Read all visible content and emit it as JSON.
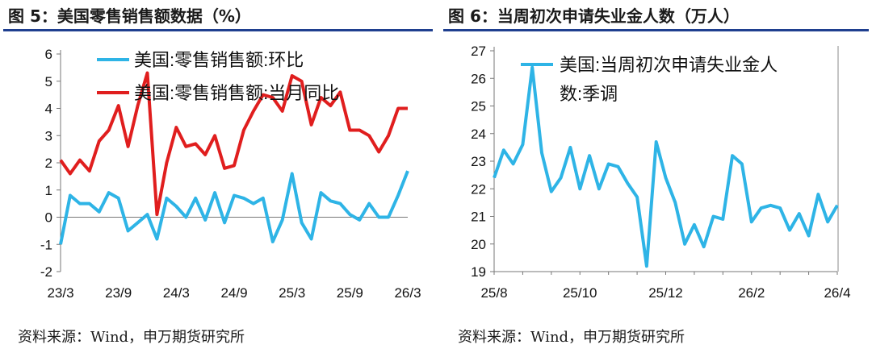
{
  "charts": [
    {
      "title": "图 5：美国零售销售额数据（%）",
      "source": "资料来源：Wind，申万期货研究所",
      "chart_data": {
        "type": "line",
        "ylim": [
          -2,
          6
        ],
        "yticks": [
          -2,
          -1,
          0,
          1,
          2,
          3,
          4,
          5,
          6
        ],
        "xticks": [
          {
            "label": "23/3",
            "index": 0
          },
          {
            "label": "23/9",
            "index": 6
          },
          {
            "label": "24/3",
            "index": 12
          },
          {
            "label": "24/9",
            "index": 18
          },
          {
            "label": "25/3",
            "index": 24
          },
          {
            "label": "25/9",
            "index": 30
          },
          {
            "label": "26/3",
            "index": 36
          }
        ],
        "legend_position": "top",
        "series": [
          {
            "name": "美国:零售销售额:环比",
            "color": "#2eb4e6",
            "values": [
              -1.0,
              0.8,
              0.5,
              0.5,
              0.2,
              0.9,
              0.7,
              -0.5,
              -0.2,
              0.1,
              -0.8,
              0.7,
              0.4,
              0.0,
              0.7,
              -0.1,
              0.9,
              -0.2,
              0.8,
              0.7,
              0.5,
              0.7,
              -0.9,
              -0.1,
              1.6,
              -0.2,
              -0.8,
              0.9,
              0.6,
              0.5,
              0.1,
              -0.1,
              0.5,
              0.0,
              0.0,
              0.8,
              1.7
            ]
          },
          {
            "name": "美国:零售销售额:当月同比",
            "color": "#e01e1e",
            "values": [
              2.1,
              1.6,
              2.1,
              1.7,
              2.8,
              3.2,
              4.1,
              2.6,
              4.1,
              5.3,
              0.1,
              2.0,
              3.3,
              2.6,
              2.7,
              2.3,
              3.0,
              1.8,
              1.9,
              3.2,
              3.9,
              4.5,
              4.4,
              3.9,
              5.2,
              5.0,
              3.4,
              4.4,
              4.1,
              4.6,
              3.2,
              3.2,
              3.0,
              2.4,
              3.0,
              4.0,
              4.0
            ]
          }
        ]
      }
    },
    {
      "title": "图 6：当周初次申请失业金人数（万人）",
      "source": "资料来源：Wind，申万期货研究所",
      "chart_data": {
        "type": "line",
        "ylim": [
          19,
          27
        ],
        "yticks": [
          19,
          20,
          21,
          22,
          23,
          24,
          25,
          26,
          27
        ],
        "xticks": [
          {
            "label": "25/8",
            "index": 0
          },
          {
            "label": "25/10",
            "index": 9
          },
          {
            "label": "25/12",
            "index": 18
          },
          {
            "label": "26/2",
            "index": 27
          },
          {
            "label": "26/4",
            "index": 36
          }
        ],
        "legend_position": "top",
        "series": [
          {
            "name": "美国:当周初次申请失业金人数:季调",
            "legend_lines": [
              "美国:当周初次申请失业金人",
              "数:季调"
            ],
            "color": "#2eb4e6",
            "values": [
              22.4,
              23.4,
              22.9,
              23.6,
              26.4,
              23.3,
              21.9,
              22.4,
              23.5,
              22.0,
              23.2,
              22.0,
              22.9,
              22.8,
              22.2,
              21.7,
              19.2,
              23.7,
              22.4,
              21.5,
              20.0,
              20.7,
              19.9,
              21.0,
              20.9,
              23.2,
              22.9,
              20.8,
              21.3,
              21.4,
              21.3,
              20.5,
              21.1,
              20.3,
              21.8,
              20.8,
              21.4
            ]
          }
        ]
      }
    }
  ]
}
